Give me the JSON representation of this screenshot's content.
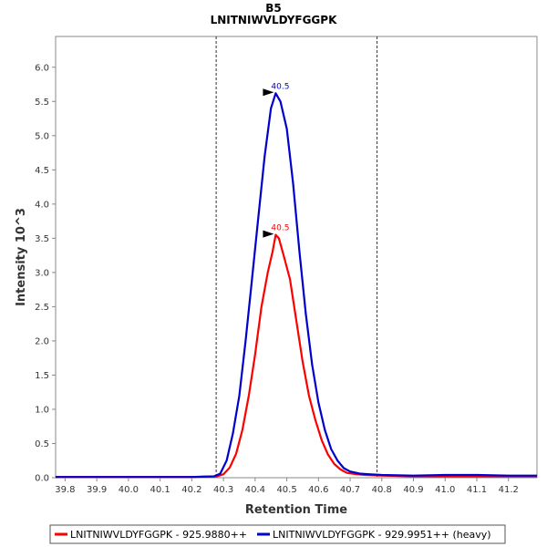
{
  "chart_data": {
    "type": "line",
    "title": "B5",
    "subtitle": "LNITNIWVLDYFGGPK",
    "xlabel": "Retention Time",
    "ylabel": "Intensity 10^3",
    "xlim": [
      39.77,
      41.29
    ],
    "ylim": [
      0,
      6.45
    ],
    "x_ticks": [
      "39.8",
      "39.9",
      "40.0",
      "40.1",
      "40.2",
      "40.3",
      "40.4",
      "40.5",
      "40.6",
      "40.7",
      "40.8",
      "40.9",
      "41.0",
      "41.1",
      "41.2"
    ],
    "y_ticks": [
      "0.0",
      "0.5",
      "1.0",
      "1.5",
      "2.0",
      "2.5",
      "3.0",
      "3.5",
      "4.0",
      "4.5",
      "5.0",
      "5.5",
      "6.0"
    ],
    "integration_bounds": [
      40.277,
      40.785
    ],
    "grid": false,
    "legend_position": "bottom",
    "series": [
      {
        "name": "LNITNIWVLDYFGGPK - 925.9880++",
        "color": "#ff0000",
        "peak_label": "40.5",
        "peak": [
          40.465,
          3.55
        ],
        "points": [
          [
            39.77,
            0.01
          ],
          [
            40.0,
            0.01
          ],
          [
            40.2,
            0.01
          ],
          [
            40.28,
            0.02
          ],
          [
            40.3,
            0.05
          ],
          [
            40.32,
            0.15
          ],
          [
            40.34,
            0.35
          ],
          [
            40.36,
            0.7
          ],
          [
            40.38,
            1.2
          ],
          [
            40.4,
            1.8
          ],
          [
            40.42,
            2.5
          ],
          [
            40.44,
            3.0
          ],
          [
            40.455,
            3.3
          ],
          [
            40.465,
            3.55
          ],
          [
            40.475,
            3.5
          ],
          [
            40.49,
            3.25
          ],
          [
            40.51,
            2.9
          ],
          [
            40.53,
            2.3
          ],
          [
            40.55,
            1.7
          ],
          [
            40.57,
            1.2
          ],
          [
            40.59,
            0.85
          ],
          [
            40.61,
            0.55
          ],
          [
            40.63,
            0.34
          ],
          [
            40.65,
            0.2
          ],
          [
            40.67,
            0.12
          ],
          [
            40.69,
            0.07
          ],
          [
            40.72,
            0.05
          ],
          [
            40.75,
            0.04
          ],
          [
            40.8,
            0.03
          ],
          [
            40.9,
            0.02
          ],
          [
            41.0,
            0.02
          ],
          [
            41.1,
            0.02
          ],
          [
            41.2,
            0.02
          ],
          [
            41.29,
            0.02
          ]
        ]
      },
      {
        "name": "LNITNIWVLDYFGGPK - 929.9951++ (heavy)",
        "color": "#0000cc",
        "peak_label": "40.5",
        "peak": [
          40.465,
          5.62
        ],
        "points": [
          [
            39.77,
            0.01
          ],
          [
            40.0,
            0.01
          ],
          [
            40.2,
            0.01
          ],
          [
            40.27,
            0.02
          ],
          [
            40.29,
            0.06
          ],
          [
            40.31,
            0.25
          ],
          [
            40.33,
            0.65
          ],
          [
            40.35,
            1.2
          ],
          [
            40.37,
            2.0
          ],
          [
            40.39,
            2.9
          ],
          [
            40.41,
            3.8
          ],
          [
            40.43,
            4.7
          ],
          [
            40.45,
            5.4
          ],
          [
            40.465,
            5.62
          ],
          [
            40.48,
            5.5
          ],
          [
            40.5,
            5.1
          ],
          [
            40.52,
            4.3
          ],
          [
            40.54,
            3.3
          ],
          [
            40.56,
            2.4
          ],
          [
            40.58,
            1.65
          ],
          [
            40.6,
            1.1
          ],
          [
            40.62,
            0.7
          ],
          [
            40.64,
            0.42
          ],
          [
            40.66,
            0.25
          ],
          [
            40.68,
            0.14
          ],
          [
            40.7,
            0.09
          ],
          [
            40.73,
            0.06
          ],
          [
            40.76,
            0.05
          ],
          [
            40.8,
            0.04
          ],
          [
            40.9,
            0.03
          ],
          [
            41.0,
            0.04
          ],
          [
            41.1,
            0.04
          ],
          [
            41.2,
            0.03
          ],
          [
            41.29,
            0.03
          ]
        ]
      }
    ]
  }
}
